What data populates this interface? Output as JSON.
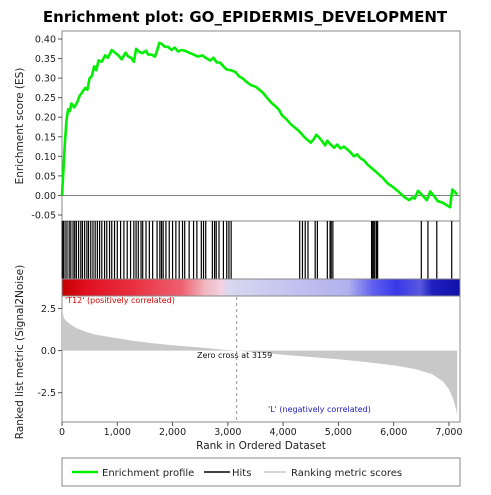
{
  "chart_data": {
    "type": "line",
    "title": "Enrichment plot: GO_EPIDERMIS_DEVELOPMENT",
    "es_panel": {
      "ylabel": "Enrichment score (ES)",
      "ylim": [
        -0.05,
        0.4
      ],
      "yticks": [
        "0.40",
        "0.35",
        "0.30",
        "0.25",
        "0.20",
        "0.15",
        "0.10",
        "0.05",
        "0.00",
        "-0.05"
      ],
      "line_color": "#00ee00",
      "points": [
        [
          0,
          0.0
        ],
        [
          20,
          0.05
        ],
        [
          50,
          0.13
        ],
        [
          80,
          0.19
        ],
        [
          110,
          0.22
        ],
        [
          140,
          0.215
        ],
        [
          170,
          0.235
        ],
        [
          220,
          0.225
        ],
        [
          280,
          0.24
        ],
        [
          320,
          0.255
        ],
        [
          370,
          0.265
        ],
        [
          420,
          0.275
        ],
        [
          460,
          0.27
        ],
        [
          500,
          0.3
        ],
        [
          540,
          0.305
        ],
        [
          580,
          0.33
        ],
        [
          620,
          0.32
        ],
        [
          660,
          0.345
        ],
        [
          720,
          0.342
        ],
        [
          780,
          0.358
        ],
        [
          830,
          0.352
        ],
        [
          900,
          0.372
        ],
        [
          960,
          0.365
        ],
        [
          1020,
          0.358
        ],
        [
          1080,
          0.348
        ],
        [
          1150,
          0.365
        ],
        [
          1200,
          0.355
        ],
        [
          1250,
          0.352
        ],
        [
          1300,
          0.342
        ],
        [
          1340,
          0.375
        ],
        [
          1400,
          0.367
        ],
        [
          1460,
          0.364
        ],
        [
          1520,
          0.37
        ],
        [
          1560,
          0.36
        ],
        [
          1620,
          0.36
        ],
        [
          1680,
          0.355
        ],
        [
          1720,
          0.37
        ],
        [
          1760,
          0.39
        ],
        [
          1800,
          0.388
        ],
        [
          1860,
          0.38
        ],
        [
          1920,
          0.38
        ],
        [
          1980,
          0.372
        ],
        [
          2040,
          0.378
        ],
        [
          2100,
          0.368
        ],
        [
          2160,
          0.372
        ],
        [
          2220,
          0.37
        ],
        [
          2300,
          0.365
        ],
        [
          2380,
          0.36
        ],
        [
          2460,
          0.355
        ],
        [
          2540,
          0.358
        ],
        [
          2600,
          0.352
        ],
        [
          2680,
          0.345
        ],
        [
          2740,
          0.352
        ],
        [
          2800,
          0.34
        ],
        [
          2860,
          0.34
        ],
        [
          2920,
          0.33
        ],
        [
          2980,
          0.322
        ],
        [
          3060,
          0.32
        ],
        [
          3140,
          0.315
        ],
        [
          3200,
          0.305
        ],
        [
          3280,
          0.298
        ],
        [
          3340,
          0.29
        ],
        [
          3420,
          0.282
        ],
        [
          3500,
          0.278
        ],
        [
          3560,
          0.272
        ],
        [
          3640,
          0.262
        ],
        [
          3720,
          0.248
        ],
        [
          3780,
          0.238
        ],
        [
          3860,
          0.228
        ],
        [
          3920,
          0.22
        ],
        [
          3980,
          0.205
        ],
        [
          4060,
          0.195
        ],
        [
          4140,
          0.182
        ],
        [
          4200,
          0.175
        ],
        [
          4260,
          0.168
        ],
        [
          4320,
          0.16
        ],
        [
          4380,
          0.15
        ],
        [
          4440,
          0.142
        ],
        [
          4500,
          0.135
        ],
        [
          4560,
          0.145
        ],
        [
          4600,
          0.155
        ],
        [
          4640,
          0.15
        ],
        [
          4700,
          0.14
        ],
        [
          4760,
          0.128
        ],
        [
          4800,
          0.14
        ],
        [
          4860,
          0.13
        ],
        [
          4920,
          0.122
        ],
        [
          4980,
          0.13
        ],
        [
          5040,
          0.12
        ],
        [
          5100,
          0.125
        ],
        [
          5160,
          0.118
        ],
        [
          5220,
          0.11
        ],
        [
          5280,
          0.1
        ],
        [
          5340,
          0.105
        ],
        [
          5400,
          0.095
        ],
        [
          5460,
          0.09
        ],
        [
          5520,
          0.08
        ],
        [
          5600,
          0.07
        ],
        [
          5700,
          0.058
        ],
        [
          5800,
          0.045
        ],
        [
          5900,
          0.03
        ],
        [
          6000,
          0.02
        ],
        [
          6100,
          0.008
        ],
        [
          6200,
          -0.005
        ],
        [
          6280,
          -0.012
        ],
        [
          6340,
          -0.005
        ],
        [
          6380,
          -0.008
        ],
        [
          6440,
          0.012
        ],
        [
          6520,
          0.0
        ],
        [
          6600,
          -0.012
        ],
        [
          6660,
          0.01
        ],
        [
          6720,
          0.0
        ],
        [
          6800,
          -0.015
        ],
        [
          6880,
          -0.018
        ],
        [
          6960,
          -0.025
        ],
        [
          7020,
          -0.03
        ],
        [
          7060,
          0.015
        ],
        [
          7100,
          0.01
        ],
        [
          7150,
          0.002
        ]
      ]
    },
    "hits_panel": {
      "hit_color": "#000000",
      "hits": [
        5,
        25,
        55,
        90,
        130,
        160,
        200,
        230,
        260,
        300,
        340,
        370,
        410,
        450,
        480,
        520,
        560,
        600,
        640,
        680,
        720,
        770,
        810,
        860,
        900,
        950,
        1000,
        1060,
        1120,
        1180,
        1240,
        1300,
        1340,
        1380,
        1430,
        1460,
        1520,
        1580,
        1640,
        1720,
        1770,
        1800,
        1830,
        1880,
        1940,
        2000,
        2060,
        2120,
        2180,
        2220,
        2300,
        2380,
        2440,
        2520,
        2560,
        2600,
        2720,
        2760,
        2790,
        2840,
        2920,
        2980,
        3020,
        3060,
        4300,
        4350,
        4400,
        4450,
        4580,
        4620,
        4800,
        4850,
        4870,
        4900,
        5600,
        5620,
        5640,
        5660,
        5690,
        5710,
        6500,
        6620,
        6780,
        7050
      ]
    },
    "rank_bar": {
      "colors": [
        [
          "0",
          "#c40000"
        ],
        [
          "0.06",
          "#e01020"
        ],
        [
          "0.18",
          "#e83040"
        ],
        [
          "0.30",
          "#ee6070"
        ],
        [
          "0.36",
          "#f0b8c0"
        ],
        [
          "0.40",
          "#f4d0e0"
        ],
        [
          "0.42",
          "#d8d8f0"
        ],
        [
          "0.60",
          "#c0c0f0"
        ],
        [
          "0.72",
          "#b0b0ee"
        ],
        [
          "0.78",
          "#6060ee"
        ],
        [
          "0.84",
          "#3838e8"
        ],
        [
          "0.90",
          "#5858e0"
        ],
        [
          "0.93",
          "#2020c0"
        ],
        [
          "1",
          "#1010a8"
        ]
      ],
      "label_pos": "'T12' (positively correlated)",
      "label_pos_color": "#dd0000",
      "label_neg": "'L' (negatively correlated)",
      "label_neg_color": "#2020c0"
    },
    "metric_panel": {
      "ylabel": "Ranked list metric (Signal2Noise)",
      "ylim": [
        -4.0,
        3.0
      ],
      "yticks": [
        "2.5",
        "0.0",
        "-2.5"
      ],
      "fill_color": "#c8c8c8",
      "points": [
        [
          0,
          2.5
        ],
        [
          30,
          1.95
        ],
        [
          80,
          1.75
        ],
        [
          150,
          1.55
        ],
        [
          250,
          1.35
        ],
        [
          400,
          1.15
        ],
        [
          600,
          0.95
        ],
        [
          900,
          0.78
        ],
        [
          1200,
          0.62
        ],
        [
          1600,
          0.45
        ],
        [
          2000,
          0.32
        ],
        [
          2500,
          0.18
        ],
        [
          2900,
          0.06
        ],
        [
          3159,
          0.0
        ],
        [
          3500,
          -0.1
        ],
        [
          4000,
          -0.25
        ],
        [
          4500,
          -0.38
        ],
        [
          5000,
          -0.52
        ],
        [
          5500,
          -0.68
        ],
        [
          6000,
          -0.88
        ],
        [
          6400,
          -1.1
        ],
        [
          6700,
          -1.4
        ],
        [
          6900,
          -1.85
        ],
        [
          7000,
          -2.3
        ],
        [
          7080,
          -2.9
        ],
        [
          7130,
          -3.5
        ],
        [
          7150,
          -3.8
        ]
      ],
      "zero_cross": 3159,
      "zero_cross_label": "Zero cross at 3159"
    },
    "xaxis": {
      "label": "Rank in Ordered Dataset",
      "xlim": [
        0,
        7200
      ],
      "ticks": [
        0,
        1000,
        2000,
        3000,
        4000,
        5000,
        6000,
        7000
      ],
      "tick_labels": [
        "0",
        "1,000",
        "2,000",
        "3,000",
        "4,000",
        "5,000",
        "6,000",
        "7,000"
      ]
    },
    "legend": {
      "placement": "bottom",
      "items": [
        {
          "label": "Enrichment profile",
          "color": "#00ee00",
          "kind": "line"
        },
        {
          "label": "Hits",
          "color": "#000000",
          "kind": "line"
        },
        {
          "label": "Ranking metric scores",
          "color": "#c8c8c8",
          "kind": "line"
        }
      ]
    }
  }
}
